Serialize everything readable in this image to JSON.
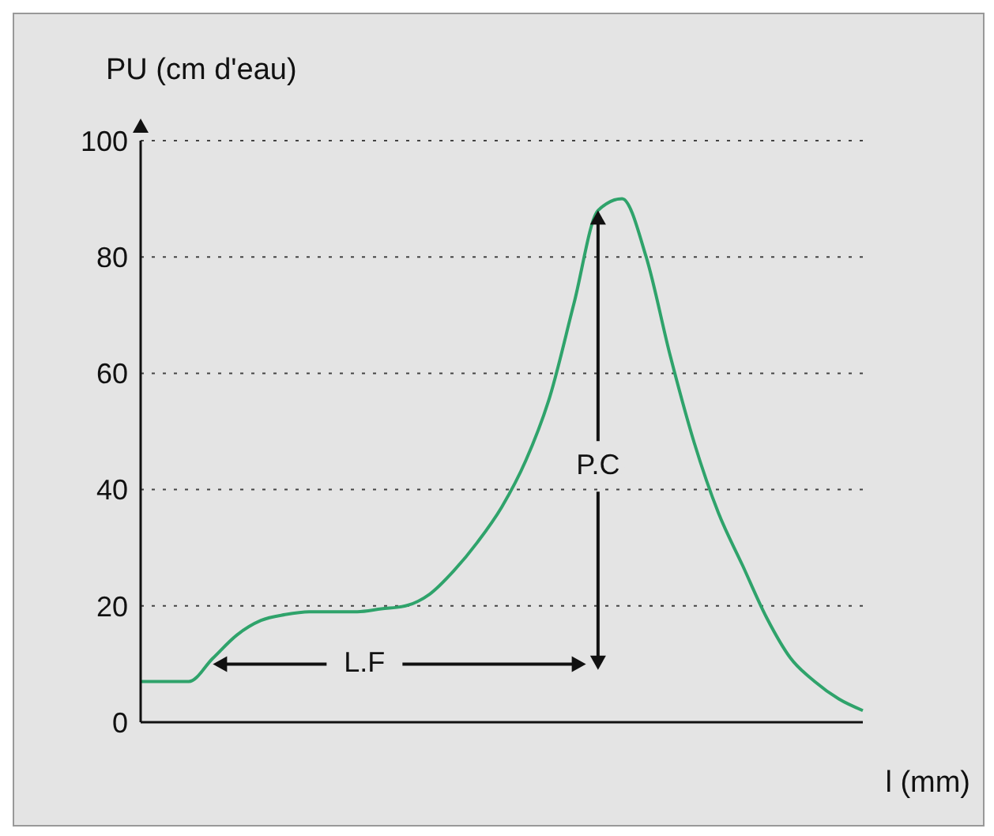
{
  "chart_data": {
    "type": "line",
    "xlabel": "l (mm)",
    "ylabel": "PU (cm d'eau)",
    "categories": [
      null,
      null,
      null,
      null,
      null,
      null,
      null,
      null,
      null,
      null,
      null,
      null,
      null,
      null,
      null,
      null,
      null,
      null,
      null,
      null,
      null,
      null,
      null,
      null,
      null,
      null,
      null,
      null,
      null,
      null,
      null
    ],
    "series": [
      {
        "color": "#2fa36b",
        "values": [
          7,
          7,
          7,
          11,
          15,
          17.5,
          18.5,
          19,
          19,
          19,
          19.5,
          20,
          22,
          26,
          31,
          37,
          45,
          56,
          72,
          88,
          90,
          80,
          63,
          48,
          36,
          27,
          18,
          11,
          7,
          4,
          2
        ]
      }
    ],
    "ylim": [
      0,
      100
    ],
    "yticks": [
      0,
      20,
      40,
      60,
      80,
      100
    ],
    "grid": "y",
    "marker": "none",
    "line_style": "solid",
    "annotations": [
      "P.C",
      "L.F"
    ]
  }
}
